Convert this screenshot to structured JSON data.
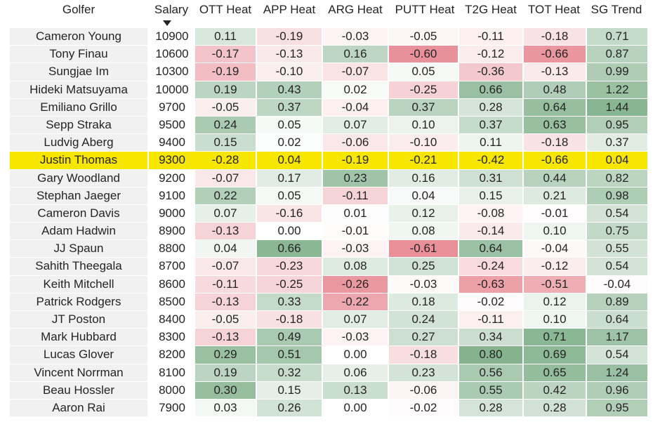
{
  "columns": [
    "Golfer",
    "Salary",
    "OTT Heat",
    "APP Heat",
    "ARG Heat",
    "PUTT Heat",
    "T2G Heat",
    "TOT Heat",
    "SG Trend"
  ],
  "sort": {
    "column": "Salary",
    "direction": "descending",
    "icon": "sort-descending-icon"
  },
  "highlighted_row": "Justin Thomas",
  "colors": {
    "positive": "#6ea57a",
    "negative": "#e2737e",
    "highlight": "#f6e600",
    "highlight_strong": "#f0c000",
    "golfer_bg": "#f1f1f1"
  },
  "rows": [
    {
      "golfer": "Cameron Young",
      "salary": "10900",
      "ott": "0.11",
      "app": "-0.19",
      "arg": "-0.03",
      "putt": "-0.05",
      "t2g": "-0.11",
      "tot": "-0.18",
      "sg": "0.71"
    },
    {
      "golfer": "Tony Finau",
      "salary": "10600",
      "ott": "-0.17",
      "app": "-0.13",
      "arg": "0.16",
      "putt": "-0.60",
      "t2g": "-0.12",
      "tot": "-0.66",
      "sg": "0.87"
    },
    {
      "golfer": "Sungjae Im",
      "salary": "10300",
      "ott": "-0.19",
      "app": "-0.10",
      "arg": "-0.07",
      "putt": "0.05",
      "t2g": "-0.36",
      "tot": "-0.13",
      "sg": "0.99"
    },
    {
      "golfer": "Hideki Matsuyama",
      "salary": "10000",
      "ott": "0.19",
      "app": "0.43",
      "arg": "0.02",
      "putt": "-0.25",
      "t2g": "0.66",
      "tot": "0.48",
      "sg": "1.22"
    },
    {
      "golfer": "Emiliano Grillo",
      "salary": "9700",
      "ott": "-0.05",
      "app": "0.37",
      "arg": "-0.04",
      "putt": "0.37",
      "t2g": "0.28",
      "tot": "0.64",
      "sg": "1.44"
    },
    {
      "golfer": "Sepp Straka",
      "salary": "9500",
      "ott": "0.24",
      "app": "0.05",
      "arg": "0.07",
      "putt": "0.10",
      "t2g": "0.37",
      "tot": "0.63",
      "sg": "0.95"
    },
    {
      "golfer": "Ludvig Aberg",
      "salary": "9400",
      "ott": "0.15",
      "app": "0.02",
      "arg": "-0.06",
      "putt": "-0.10",
      "t2g": "0.11",
      "tot": "-0.18",
      "sg": "0.37"
    },
    {
      "golfer": "Justin Thomas",
      "salary": "9300",
      "ott": "-0.28",
      "app": "0.04",
      "arg": "-0.19",
      "putt": "-0.21",
      "t2g": "-0.42",
      "tot": "-0.66",
      "sg": "0.04"
    },
    {
      "golfer": "Gary Woodland",
      "salary": "9200",
      "ott": "-0.07",
      "app": "0.17",
      "arg": "0.23",
      "putt": "0.16",
      "t2g": "0.31",
      "tot": "0.44",
      "sg": "0.82"
    },
    {
      "golfer": "Stephan Jaeger",
      "salary": "9100",
      "ott": "0.22",
      "app": "0.05",
      "arg": "-0.11",
      "putt": "0.04",
      "t2g": "0.15",
      "tot": "0.21",
      "sg": "0.98"
    },
    {
      "golfer": "Cameron Davis",
      "salary": "9000",
      "ott": "0.07",
      "app": "-0.16",
      "arg": "0.01",
      "putt": "0.12",
      "t2g": "-0.08",
      "tot": "-0.01",
      "sg": "0.54"
    },
    {
      "golfer": "Adam Hadwin",
      "salary": "8900",
      "ott": "-0.13",
      "app": "0.00",
      "arg": "-0.01",
      "putt": "0.08",
      "t2g": "-0.14",
      "tot": "0.10",
      "sg": "0.75"
    },
    {
      "golfer": "JJ Spaun",
      "salary": "8800",
      "ott": "0.04",
      "app": "0.66",
      "arg": "-0.03",
      "putt": "-0.61",
      "t2g": "0.64",
      "tot": "-0.04",
      "sg": "0.55"
    },
    {
      "golfer": "Sahith Theegala",
      "salary": "8700",
      "ott": "-0.07",
      "app": "-0.23",
      "arg": "0.08",
      "putt": "0.25",
      "t2g": "-0.24",
      "tot": "-0.12",
      "sg": "0.54"
    },
    {
      "golfer": "Keith Mitchell",
      "salary": "8600",
      "ott": "-0.11",
      "app": "-0.25",
      "arg": "-0.26",
      "putt": "-0.03",
      "t2g": "-0.63",
      "tot": "-0.51",
      "sg": "-0.04"
    },
    {
      "golfer": "Patrick Rodgers",
      "salary": "8500",
      "ott": "-0.13",
      "app": "0.33",
      "arg": "-0.22",
      "putt": "0.18",
      "t2g": "-0.02",
      "tot": "0.12",
      "sg": "0.89"
    },
    {
      "golfer": "JT Poston",
      "salary": "8400",
      "ott": "-0.05",
      "app": "-0.18",
      "arg": "0.07",
      "putt": "0.24",
      "t2g": "-0.11",
      "tot": "0.10",
      "sg": "0.64"
    },
    {
      "golfer": "Mark Hubbard",
      "salary": "8300",
      "ott": "-0.13",
      "app": "0.49",
      "arg": "-0.03",
      "putt": "0.27",
      "t2g": "0.34",
      "tot": "0.71",
      "sg": "1.17"
    },
    {
      "golfer": "Lucas Glover",
      "salary": "8200",
      "ott": "0.29",
      "app": "0.51",
      "arg": "0.00",
      "putt": "-0.18",
      "t2g": "0.80",
      "tot": "0.69",
      "sg": "0.54"
    },
    {
      "golfer": "Vincent Norrman",
      "salary": "8100",
      "ott": "0.19",
      "app": "0.32",
      "arg": "0.06",
      "putt": "0.23",
      "t2g": "0.56",
      "tot": "0.65",
      "sg": "1.24"
    },
    {
      "golfer": "Beau Hossler",
      "salary": "8000",
      "ott": "0.30",
      "app": "0.15",
      "arg": "0.13",
      "putt": "-0.06",
      "t2g": "0.55",
      "tot": "0.42",
      "sg": "0.96"
    },
    {
      "golfer": "Aaron Rai",
      "salary": "7900",
      "ott": "0.03",
      "app": "0.26",
      "arg": "0.00",
      "putt": "-0.02",
      "t2g": "0.28",
      "tot": "0.28",
      "sg": "0.95"
    }
  ]
}
